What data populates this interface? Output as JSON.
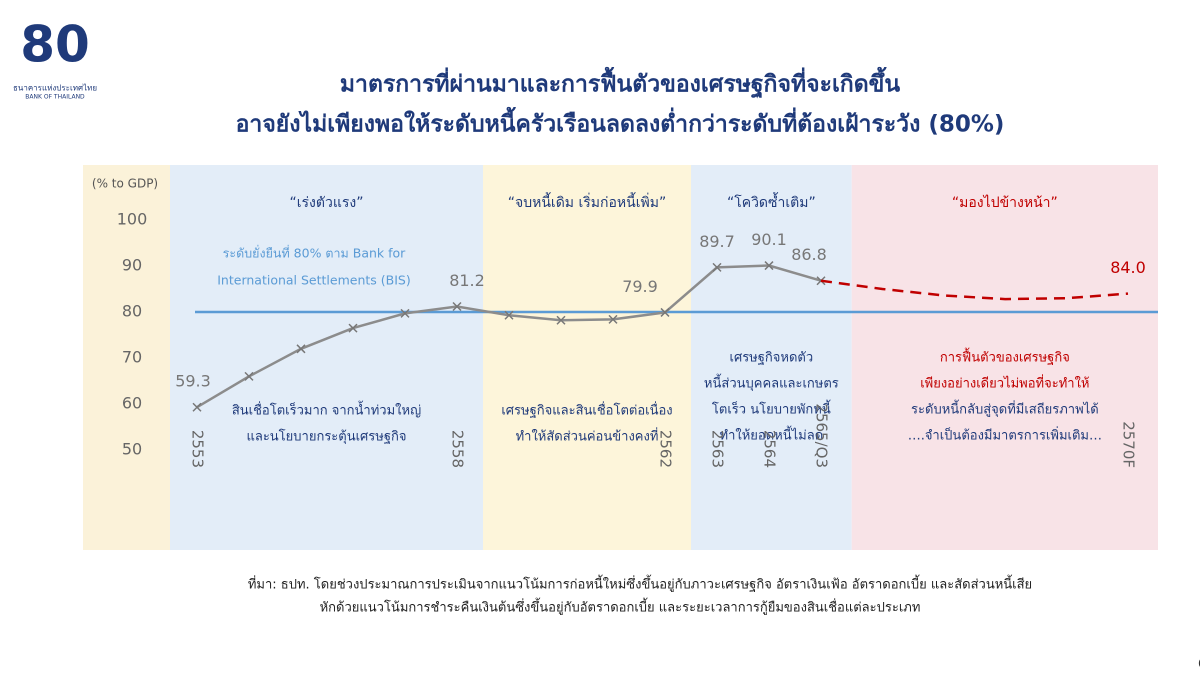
{
  "logo": {
    "mark": "80",
    "name_th": "ธนาคารแห่งประเทศไทย",
    "name_en": "BANK OF THAILAND"
  },
  "chart_data": {
    "type": "line",
    "title": [
      "มาตรการที่ผ่านมาและการฟื้นตัวของเศรษฐกิจที่จะเกิดขึ้น",
      "อาจยังไม่เพียงพอให้ระดับหนี้ครัวเรือนลดลงต่ำกว่าระดับที่ต้องเฝ้าระวัง (80%)"
    ],
    "y_label": "(% to GDP)",
    "categories": [
      "2553",
      null,
      null,
      null,
      null,
      "2558",
      null,
      null,
      null,
      "2562",
      "2563",
      "2564",
      "2565/Q3",
      null,
      null,
      null,
      null,
      "2570F"
    ],
    "series": [
      {
        "name": "actual",
        "color": "#8c8c8c",
        "dashed": false,
        "markers": true,
        "values": [
          59.3,
          66,
          72,
          76.5,
          79.7,
          81.2,
          79.3,
          78.2,
          78.4,
          79.9,
          89.7,
          90.1,
          86.8,
          null,
          null,
          null,
          null,
          null
        ],
        "value_labels": [
          "59.3",
          null,
          null,
          null,
          null,
          "81.2",
          null,
          null,
          null,
          "79.9",
          "89.7",
          "90.1",
          "86.8",
          null,
          null,
          null,
          null,
          null
        ]
      },
      {
        "name": "forecast",
        "color": "#c00000",
        "dashed": true,
        "markers": false,
        "values": [
          null,
          null,
          null,
          null,
          null,
          null,
          null,
          null,
          null,
          null,
          null,
          null,
          86.8,
          85,
          83.6,
          82.8,
          83,
          84.0
        ],
        "value_labels": [
          null,
          null,
          null,
          null,
          null,
          null,
          null,
          null,
          null,
          null,
          null,
          null,
          null,
          null,
          null,
          null,
          null,
          "84.0"
        ]
      }
    ],
    "ylim": [
      30,
      110
    ],
    "yticks": [
      50,
      60,
      70,
      80,
      90,
      100
    ],
    "reference_line": {
      "value": 80,
      "color": "#5b9bd5",
      "label": [
        "ระดับยั่งยืนที่ 80% ตาม Bank for",
        "International Settlements (BIS)"
      ]
    },
    "regions": [
      {
        "label": "“เร่งตัวแรง”",
        "label_color": "#1f3a7a",
        "background": "#e3edf8",
        "notes": [
          {
            "text": "สินเชื่อโตเร็วมาก จากน้ำท่วมใหญ่",
            "color": "#1f3a7a"
          },
          {
            "text": "และนโยบายกระตุ้นเศรษฐกิจ",
            "color": "#1f3a7a"
          }
        ]
      },
      {
        "label": "“จบหนี้เดิม เริ่มก่อหนี้เพิ่ม”",
        "label_color": "#1f3a7a",
        "background": "#fdf5da",
        "notes": [
          {
            "text": "เศรษฐกิจและสินเชื่อโตต่อเนื่อง",
            "color": "#1f3a7a"
          },
          {
            "text": "ทำให้สัดส่วนค่อนข้างคงที่",
            "color": "#1f3a7a"
          }
        ]
      },
      {
        "label": "“โควิดซ้ำเติม”",
        "label_color": "#1f3a7a",
        "background": "#e3edf8",
        "notes": [
          {
            "text": "เศรษฐกิจหดตัว",
            "color": "#1f3a7a"
          },
          {
            "text": "หนี้ส่วนบุคคลและเกษตร",
            "color": "#1f3a7a"
          },
          {
            "text": "โตเร็ว นโยบายพักหนี้",
            "color": "#1f3a7a"
          },
          {
            "text": "ทำให้ยอดหนี้ไม่ลด",
            "color": "#1f3a7a"
          }
        ]
      },
      {
        "label": "“มองไปข้างหน้า”",
        "label_color": "#c00000",
        "background": "#f8e3e7",
        "notes": [
          {
            "text": "การฟื้นตัวของเศรษฐกิจ",
            "color": "#c00000"
          },
          {
            "text": "เพียงอย่างเดียวไม่พอที่จะทำให้",
            "color": "#c00000"
          },
          {
            "text": "ระดับหนี้กลับสู่จุดที่มีเสถียรภาพได้",
            "color": "#1f3a7a"
          },
          {
            "text": "….จำเป็นต้องมีมาตรการเพิ่มเติม…",
            "color": "#1f3a7a"
          }
        ]
      }
    ],
    "source": [
      "ที่มา: ธปท. โดยช่วงประมาณการประเมินจากแนวโน้มการก่อหนี้ใหม่ซึ่งขึ้นอยู่กับภาวะเศรษฐกิจ อัตราเงินเฟ้อ อัตราดอกเบี้ย และสัดส่วนหนี้เสีย",
      "หักด้วยแนวโน้มการชำระคืนเงินต้นซึ่งขึ้นอยู่กับอัตราดอกเบี้ย และระยะเวลาการกู้ยืมของสินเชื่อแต่ละประเภท"
    ]
  },
  "page_number": "6"
}
